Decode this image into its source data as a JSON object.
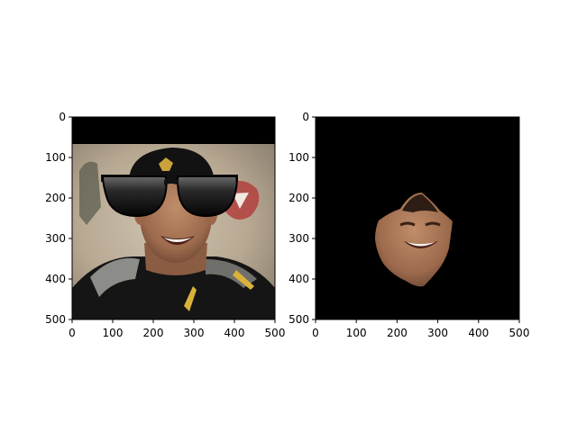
{
  "chart_data": [
    {
      "type": "image",
      "content": "photo of smiling man in cap with black sunglasses overlay",
      "xlim": [
        0,
        500
      ],
      "ylim": [
        500,
        0
      ],
      "xticks": [
        0,
        100,
        200,
        300,
        400,
        500
      ],
      "yticks": [
        0,
        100,
        200,
        300,
        400,
        500
      ],
      "grid": false
    },
    {
      "type": "image",
      "content": "face region segmented on black background",
      "xlim": [
        0,
        500
      ],
      "ylim": [
        500,
        0
      ],
      "xticks": [
        0,
        100,
        200,
        300,
        400,
        500
      ],
      "yticks": [
        0,
        100,
        200,
        300,
        400,
        500
      ],
      "grid": false
    }
  ]
}
